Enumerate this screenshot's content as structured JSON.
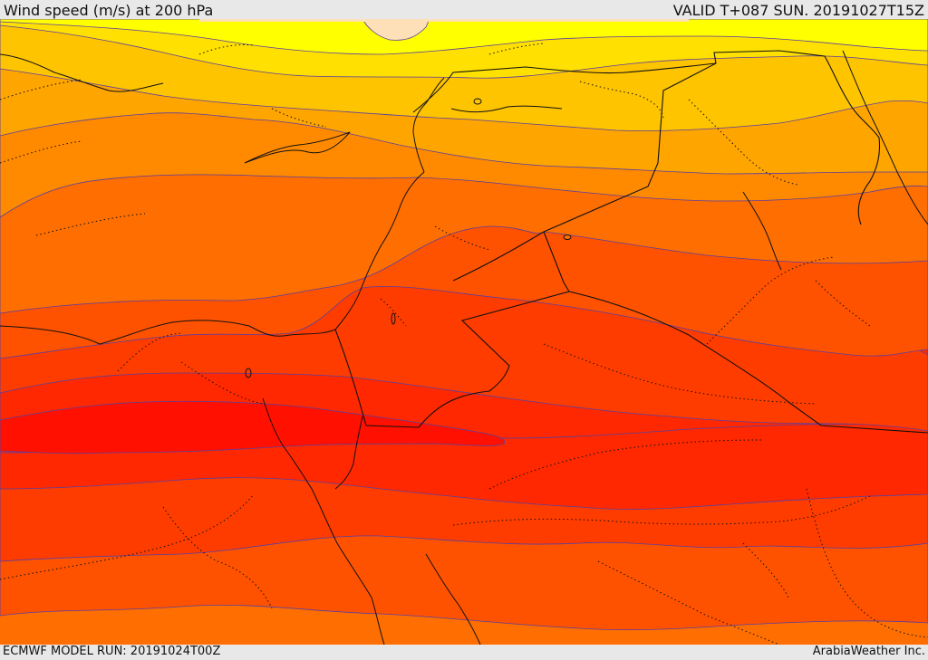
{
  "header": {
    "title": "Wind speed (m/s) at 200 hPa",
    "valid_time": "VALID T+087 SUN. 20191027T15Z"
  },
  "footer": {
    "model_run": "ECMWF MODEL RUN: 20191024T00Z",
    "credit": "ArabiaWeather Inc."
  },
  "map": {
    "field": "wind speed at 200 hPa",
    "colors": {
      "pale_peach": "#fde0b8",
      "yellow": "#ffff00",
      "gold": "#ffe000",
      "amber": "#ffc400",
      "orange_light": "#ffa500",
      "orange": "#ff8a00",
      "orange_dark": "#ff6e00",
      "red_orange": "#ff5200",
      "red_light": "#ff3c00",
      "red": "#ff2800",
      "red_core": "#ff1000",
      "contour_line": "#5a3ea0",
      "border_line": "#111111"
    }
  }
}
